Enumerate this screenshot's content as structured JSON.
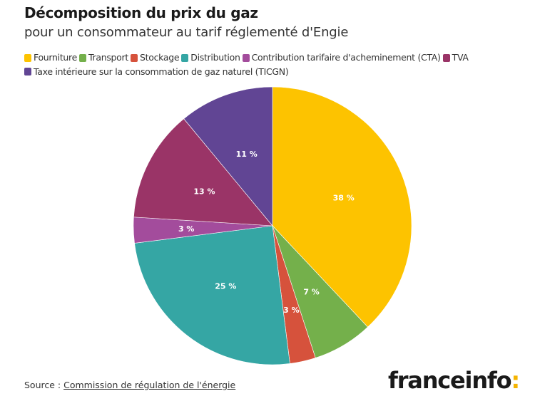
{
  "header": {
    "title": "Décomposition du prix du gaz",
    "subtitle": "pour un consommateur au tarif réglementé d'Engie"
  },
  "chart_data": {
    "type": "pie",
    "title": "Décomposition du prix du gaz",
    "subtitle": "pour un consommateur au tarif réglementé d'Engie",
    "legend_placement": "top",
    "slices": [
      {
        "name": "Fourniture",
        "value": 38,
        "label": "38 %",
        "color": "#fdc300"
      },
      {
        "name": "Transport",
        "value": 7,
        "label": "7 %",
        "color": "#74b04b"
      },
      {
        "name": "Stockage",
        "value": 3,
        "label": "3 %",
        "color": "#d6523c"
      },
      {
        "name": "Distribution",
        "value": 25,
        "label": "25 %",
        "color": "#35a6a4"
      },
      {
        "name": "Contribution tarifaire d'acheminement (CTA)",
        "value": 3,
        "label": "3 %",
        "color": "#a34c9c"
      },
      {
        "name": "TVA",
        "value": 13,
        "label": "13 %",
        "color": "#9a3467"
      },
      {
        "name": "Taxe intérieure sur la consommation de gaz naturel (TICGN)",
        "value": 11,
        "label": "11 %",
        "color": "#614594"
      }
    ]
  },
  "footer": {
    "source_prefix": "Source : ",
    "source_link": "Commission de régulation de l'énergie"
  },
  "logo": {
    "text": "franceinfo",
    "colon": ":"
  }
}
